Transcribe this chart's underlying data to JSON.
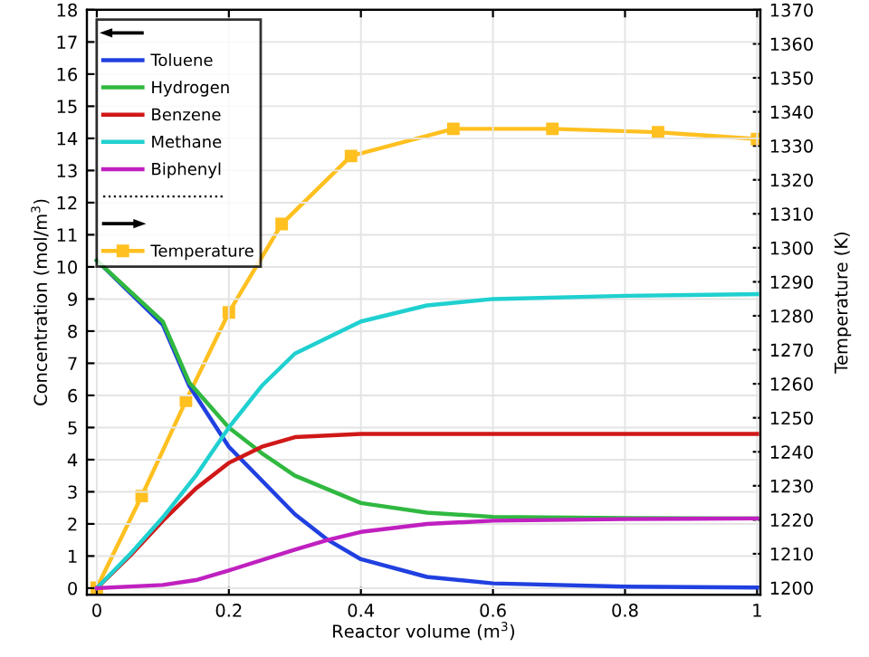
{
  "chart_data": {
    "type": "line",
    "xlabel": "Reactor volume (m$^{3}$)",
    "ylabel": "Concentration (mol/m$^{3}$)",
    "y2label": "Temperature (K)",
    "xlim": [
      -0.015,
      1.005
    ],
    "xticks": [
      0,
      0.2,
      0.4,
      0.6,
      0.8,
      1
    ],
    "ylim": [
      -0.2,
      18
    ],
    "yticks": [
      0,
      1,
      2,
      3,
      4,
      5,
      6,
      7,
      8,
      9,
      10,
      11,
      12,
      13,
      14,
      15,
      16,
      17,
      18
    ],
    "y2lim": [
      1198,
      1370
    ],
    "y2ticks": [
      1200,
      1210,
      1220,
      1230,
      1240,
      1250,
      1260,
      1270,
      1280,
      1290,
      1300,
      1310,
      1320,
      1330,
      1340,
      1350,
      1360,
      1370
    ],
    "grid": true,
    "legend": "top left",
    "line_style": "solid",
    "series": [
      {
        "name": "Toluene",
        "color": "#2040e0",
        "x": [
          0,
          0.1,
          0.14,
          0.2,
          0.3,
          0.35,
          0.4,
          0.5,
          0.6,
          0.8,
          1
        ],
        "values": [
          10.2,
          8.2,
          6.3,
          4.4,
          2.3,
          1.5,
          0.9,
          0.35,
          0.15,
          0.05,
          0.02
        ]
      },
      {
        "name": "Hydrogen",
        "color": "#30b840",
        "x": [
          0,
          0.1,
          0.14,
          0.2,
          0.25,
          0.3,
          0.4,
          0.5,
          0.6,
          0.8,
          1
        ],
        "values": [
          10.2,
          8.3,
          6.4,
          5.0,
          4.2,
          3.5,
          2.65,
          2.35,
          2.22,
          2.18,
          2.17
        ]
      },
      {
        "name": "Benzene",
        "color": "#d01818",
        "x": [
          0,
          0.05,
          0.1,
          0.15,
          0.2,
          0.25,
          0.3,
          0.4,
          1
        ],
        "values": [
          0,
          1.0,
          2.1,
          3.1,
          3.9,
          4.4,
          4.7,
          4.8,
          4.8
        ]
      },
      {
        "name": "Methane",
        "color": "#20d0d0",
        "x": [
          0,
          0.05,
          0.1,
          0.15,
          0.2,
          0.25,
          0.3,
          0.4,
          0.5,
          0.6,
          0.8,
          1
        ],
        "values": [
          0,
          1.05,
          2.2,
          3.5,
          5.0,
          6.3,
          7.3,
          8.3,
          8.8,
          9.0,
          9.1,
          9.15
        ]
      },
      {
        "name": "Biphenyl",
        "color": "#c020c0",
        "x": [
          0,
          0.1,
          0.15,
          0.2,
          0.3,
          0.35,
          0.4,
          0.5,
          0.6,
          0.8,
          1
        ],
        "values": [
          0,
          0.1,
          0.25,
          0.55,
          1.2,
          1.5,
          1.75,
          2.0,
          2.1,
          2.15,
          2.17
        ]
      },
      {
        "name": "Temperature",
        "color": "#ffc020",
        "axis": "y2",
        "marker": "square",
        "x": [
          0,
          0.068,
          0.135,
          0.2,
          0.28,
          0.385,
          0.54,
          0.69,
          0.85,
          1
        ],
        "values": [
          1200,
          1227,
          1255,
          1281,
          1307,
          1327,
          1335,
          1335,
          1334,
          1332
        ]
      }
    ]
  }
}
